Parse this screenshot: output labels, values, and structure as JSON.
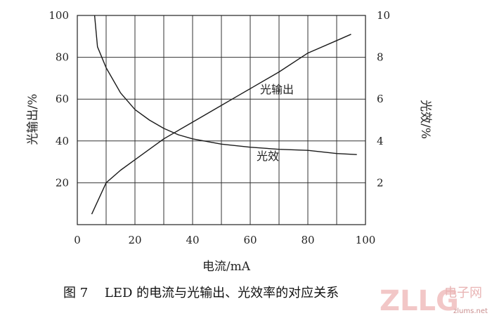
{
  "chart_data": {
    "type": "line",
    "x": {
      "label": "电流/mA",
      "range": [
        0,
        100
      ],
      "ticks": [
        0,
        20,
        40,
        60,
        80,
        100
      ],
      "tick_labels": [
        "0",
        "20",
        "40",
        "60",
        "80",
        "100"
      ]
    },
    "y_left": {
      "label": "光输出/%",
      "range": [
        0,
        100
      ],
      "ticks": [
        20,
        40,
        60,
        80,
        100
      ],
      "tick_labels": [
        "20",
        "40",
        "60",
        "80",
        "100"
      ]
    },
    "y_right": {
      "label": "光效/%",
      "range": [
        0,
        10
      ],
      "ticks": [
        2,
        4,
        6,
        8,
        10
      ],
      "tick_labels": [
        "2",
        "4",
        "6",
        "8",
        "10"
      ]
    },
    "grid": true,
    "series": [
      {
        "name": "光输出",
        "axis": "left",
        "points": [
          [
            5,
            5
          ],
          [
            10,
            20
          ],
          [
            15,
            26
          ],
          [
            20,
            31
          ],
          [
            25,
            36
          ],
          [
            30,
            41
          ],
          [
            40,
            49
          ],
          [
            50,
            57
          ],
          [
            55,
            61
          ],
          [
            60,
            65
          ],
          [
            70,
            73
          ],
          [
            80,
            82
          ],
          [
            90,
            88
          ],
          [
            95,
            91
          ]
        ]
      },
      {
        "name": "光效",
        "axis": "right",
        "points": [
          [
            6,
            10
          ],
          [
            7,
            8.5
          ],
          [
            10,
            7.5
          ],
          [
            15,
            6.3
          ],
          [
            20,
            5.5
          ],
          [
            25,
            5.0
          ],
          [
            30,
            4.6
          ],
          [
            35,
            4.3
          ],
          [
            40,
            4.1
          ],
          [
            50,
            3.85
          ],
          [
            60,
            3.7
          ],
          [
            70,
            3.6
          ],
          [
            80,
            3.55
          ],
          [
            90,
            3.4
          ],
          [
            97,
            3.35
          ]
        ]
      }
    ],
    "annotations": [
      {
        "text": "光输出",
        "series": 0
      },
      {
        "text": "光效",
        "series": 1
      }
    ],
    "caption": "图 7　 LED 的电流与光输出、光效率的对应关系"
  },
  "watermark": {
    "brand": "ZLLG",
    "site_cn": "电子网",
    "domain": "zlums.net"
  }
}
